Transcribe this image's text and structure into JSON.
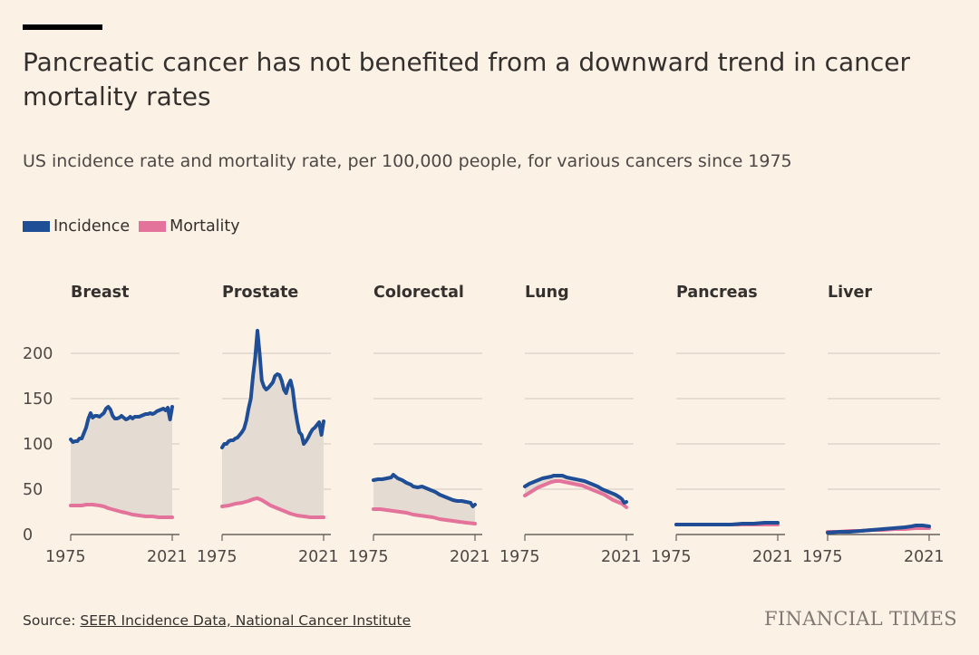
{
  "title": "Pancreatic cancer has not benefited from a downward trend in cancer mortality rates",
  "subtitle": "US incidence rate and mortality rate, per 100,000 people, for various cancers since 1975",
  "legend": {
    "incidence": "Incidence",
    "mortality": "Mortality"
  },
  "colors": {
    "incidence": "#1f4e96",
    "mortality": "#e3739a",
    "fill": "#e4dcd3",
    "grid": "#cfc6bd",
    "background": "#fcf1e5"
  },
  "source": {
    "label": "Source: ",
    "link_text": "SEER Incidence Data, National Cancer Institute"
  },
  "brand": "FINANCIAL TIMES",
  "chart_data": {
    "type": "line",
    "ylim": [
      0,
      230
    ],
    "yticks": [
      0,
      50,
      100,
      150,
      200
    ],
    "xticks": [
      "1975",
      "2021"
    ],
    "x_range": [
      1975,
      2021
    ],
    "panels": [
      {
        "name": "Breast",
        "incidence": [
          [
            1975,
            105
          ],
          [
            1976,
            102
          ],
          [
            1977,
            103
          ],
          [
            1978,
            103
          ],
          [
            1979,
            106
          ],
          [
            1980,
            106
          ],
          [
            1981,
            112
          ],
          [
            1982,
            118
          ],
          [
            1983,
            128
          ],
          [
            1984,
            134
          ],
          [
            1985,
            129
          ],
          [
            1986,
            131
          ],
          [
            1987,
            131
          ],
          [
            1988,
            130
          ],
          [
            1989,
            132
          ],
          [
            1990,
            134
          ],
          [
            1991,
            139
          ],
          [
            1992,
            141
          ],
          [
            1993,
            138
          ],
          [
            1994,
            131
          ],
          [
            1995,
            128
          ],
          [
            1996,
            128
          ],
          [
            1997,
            129
          ],
          [
            1998,
            131
          ],
          [
            1999,
            129
          ],
          [
            2000,
            127
          ],
          [
            2001,
            128
          ],
          [
            2002,
            130
          ],
          [
            2003,
            128
          ],
          [
            2004,
            130
          ],
          [
            2005,
            130
          ],
          [
            2006,
            130
          ],
          [
            2007,
            131
          ],
          [
            2008,
            132
          ],
          [
            2009,
            133
          ],
          [
            2010,
            133
          ],
          [
            2011,
            134
          ],
          [
            2012,
            133
          ],
          [
            2013,
            134
          ],
          [
            2014,
            136
          ],
          [
            2015,
            137
          ],
          [
            2016,
            138
          ],
          [
            2017,
            139
          ],
          [
            2018,
            137
          ],
          [
            2019,
            140
          ],
          [
            2020,
            127
          ],
          [
            2021,
            141
          ]
        ],
        "mortality": [
          [
            1975,
            32
          ],
          [
            1978,
            32
          ],
          [
            1980,
            32
          ],
          [
            1982,
            33
          ],
          [
            1985,
            33
          ],
          [
            1988,
            32
          ],
          [
            1990,
            31
          ],
          [
            1992,
            29
          ],
          [
            1995,
            27
          ],
          [
            1998,
            25
          ],
          [
            2000,
            24
          ],
          [
            2003,
            22
          ],
          [
            2006,
            21
          ],
          [
            2009,
            20
          ],
          [
            2012,
            20
          ],
          [
            2015,
            19
          ],
          [
            2018,
            19
          ],
          [
            2021,
            19
          ]
        ]
      },
      {
        "name": "Prostate",
        "incidence": [
          [
            1975,
            96
          ],
          [
            1976,
            100
          ],
          [
            1977,
            100
          ],
          [
            1978,
            103
          ],
          [
            1979,
            104
          ],
          [
            1980,
            104
          ],
          [
            1981,
            106
          ],
          [
            1982,
            107
          ],
          [
            1983,
            110
          ],
          [
            1984,
            113
          ],
          [
            1985,
            117
          ],
          [
            1986,
            126
          ],
          [
            1987,
            139
          ],
          [
            1988,
            150
          ],
          [
            1989,
            175
          ],
          [
            1990,
            195
          ],
          [
            1991,
            225
          ],
          [
            1992,
            200
          ],
          [
            1993,
            170
          ],
          [
            1994,
            163
          ],
          [
            1995,
            160
          ],
          [
            1996,
            162
          ],
          [
            1997,
            165
          ],
          [
            1998,
            168
          ],
          [
            1999,
            175
          ],
          [
            2000,
            177
          ],
          [
            2001,
            176
          ],
          [
            2002,
            170
          ],
          [
            2003,
            160
          ],
          [
            2004,
            156
          ],
          [
            2005,
            165
          ],
          [
            2006,
            170
          ],
          [
            2007,
            160
          ],
          [
            2008,
            140
          ],
          [
            2009,
            125
          ],
          [
            2010,
            113
          ],
          [
            2011,
            110
          ],
          [
            2012,
            100
          ],
          [
            2013,
            103
          ],
          [
            2014,
            107
          ],
          [
            2015,
            112
          ],
          [
            2016,
            116
          ],
          [
            2017,
            118
          ],
          [
            2018,
            121
          ],
          [
            2019,
            124
          ],
          [
            2020,
            110
          ],
          [
            2021,
            125
          ]
        ],
        "mortality": [
          [
            1975,
            31
          ],
          [
            1978,
            32
          ],
          [
            1981,
            34
          ],
          [
            1984,
            35
          ],
          [
            1987,
            37
          ],
          [
            1989,
            39
          ],
          [
            1991,
            40
          ],
          [
            1993,
            38
          ],
          [
            1995,
            35
          ],
          [
            1997,
            32
          ],
          [
            1999,
            30
          ],
          [
            2001,
            28
          ],
          [
            2003,
            26
          ],
          [
            2006,
            23
          ],
          [
            2009,
            21
          ],
          [
            2012,
            20
          ],
          [
            2015,
            19
          ],
          [
            2018,
            19
          ],
          [
            2021,
            19
          ]
        ]
      },
      {
        "name": "Colorectal",
        "incidence": [
          [
            1975,
            60
          ],
          [
            1977,
            61
          ],
          [
            1979,
            61
          ],
          [
            1981,
            62
          ],
          [
            1983,
            63
          ],
          [
            1984,
            66
          ],
          [
            1985,
            64
          ],
          [
            1986,
            62
          ],
          [
            1988,
            60
          ],
          [
            1990,
            57
          ],
          [
            1992,
            55
          ],
          [
            1993,
            53
          ],
          [
            1995,
            52
          ],
          [
            1997,
            53
          ],
          [
            1999,
            51
          ],
          [
            2001,
            49
          ],
          [
            2003,
            47
          ],
          [
            2005,
            44
          ],
          [
            2007,
            42
          ],
          [
            2009,
            40
          ],
          [
            2011,
            38
          ],
          [
            2013,
            37
          ],
          [
            2015,
            37
          ],
          [
            2017,
            36
          ],
          [
            2019,
            35
          ],
          [
            2020,
            31
          ],
          [
            2021,
            33
          ]
        ],
        "mortality": [
          [
            1975,
            28
          ],
          [
            1978,
            28
          ],
          [
            1981,
            27
          ],
          [
            1984,
            26
          ],
          [
            1987,
            25
          ],
          [
            1990,
            24
          ],
          [
            1993,
            22
          ],
          [
            1996,
            21
          ],
          [
            1999,
            20
          ],
          [
            2002,
            19
          ],
          [
            2005,
            17
          ],
          [
            2008,
            16
          ],
          [
            2011,
            15
          ],
          [
            2014,
            14
          ],
          [
            2017,
            13
          ],
          [
            2021,
            12
          ]
        ]
      },
      {
        "name": "Lung",
        "incidence": [
          [
            1975,
            53
          ],
          [
            1977,
            56
          ],
          [
            1979,
            58
          ],
          [
            1981,
            60
          ],
          [
            1983,
            62
          ],
          [
            1985,
            63
          ],
          [
            1987,
            64
          ],
          [
            1988,
            65
          ],
          [
            1990,
            65
          ],
          [
            1992,
            65
          ],
          [
            1994,
            63
          ],
          [
            1996,
            62
          ],
          [
            1998,
            61
          ],
          [
            2000,
            60
          ],
          [
            2002,
            59
          ],
          [
            2004,
            57
          ],
          [
            2006,
            55
          ],
          [
            2008,
            53
          ],
          [
            2010,
            50
          ],
          [
            2012,
            48
          ],
          [
            2014,
            46
          ],
          [
            2016,
            44
          ],
          [
            2018,
            41
          ],
          [
            2019,
            39
          ],
          [
            2020,
            35
          ],
          [
            2021,
            36
          ]
        ],
        "mortality": [
          [
            1975,
            43
          ],
          [
            1977,
            46
          ],
          [
            1979,
            49
          ],
          [
            1981,
            52
          ],
          [
            1983,
            54
          ],
          [
            1985,
            56
          ],
          [
            1987,
            58
          ],
          [
            1989,
            59
          ],
          [
            1991,
            59
          ],
          [
            1993,
            58
          ],
          [
            1995,
            57
          ],
          [
            1997,
            56
          ],
          [
            1999,
            55
          ],
          [
            2001,
            54
          ],
          [
            2003,
            52
          ],
          [
            2005,
            50
          ],
          [
            2007,
            48
          ],
          [
            2009,
            46
          ],
          [
            2011,
            44
          ],
          [
            2013,
            41
          ],
          [
            2015,
            38
          ],
          [
            2017,
            36
          ],
          [
            2019,
            34
          ],
          [
            2021,
            30
          ]
        ]
      },
      {
        "name": "Pancreas",
        "incidence": [
          [
            1975,
            11
          ],
          [
            1980,
            11
          ],
          [
            1985,
            11
          ],
          [
            1990,
            11
          ],
          [
            1995,
            11
          ],
          [
            2000,
            11
          ],
          [
            2005,
            12
          ],
          [
            2010,
            12
          ],
          [
            2015,
            13
          ],
          [
            2021,
            13
          ]
        ],
        "mortality": [
          [
            1975,
            11
          ],
          [
            1980,
            11
          ],
          [
            1985,
            11
          ],
          [
            1990,
            11
          ],
          [
            1995,
            11
          ],
          [
            2000,
            11
          ],
          [
            2005,
            11
          ],
          [
            2010,
            11
          ],
          [
            2015,
            11
          ],
          [
            2021,
            11
          ]
        ]
      },
      {
        "name": "Liver",
        "incidence": [
          [
            1975,
            2
          ],
          [
            1980,
            3
          ],
          [
            1985,
            3
          ],
          [
            1990,
            4
          ],
          [
            1995,
            5
          ],
          [
            2000,
            6
          ],
          [
            2005,
            7
          ],
          [
            2010,
            8
          ],
          [
            2013,
            9
          ],
          [
            2015,
            10
          ],
          [
            2018,
            10
          ],
          [
            2021,
            9
          ]
        ],
        "mortality": [
          [
            1975,
            3
          ],
          [
            1980,
            3
          ],
          [
            1985,
            4
          ],
          [
            1990,
            4
          ],
          [
            1995,
            5
          ],
          [
            2000,
            5
          ],
          [
            2005,
            6
          ],
          [
            2010,
            6
          ],
          [
            2015,
            7
          ],
          [
            2021,
            7
          ]
        ]
      }
    ]
  }
}
